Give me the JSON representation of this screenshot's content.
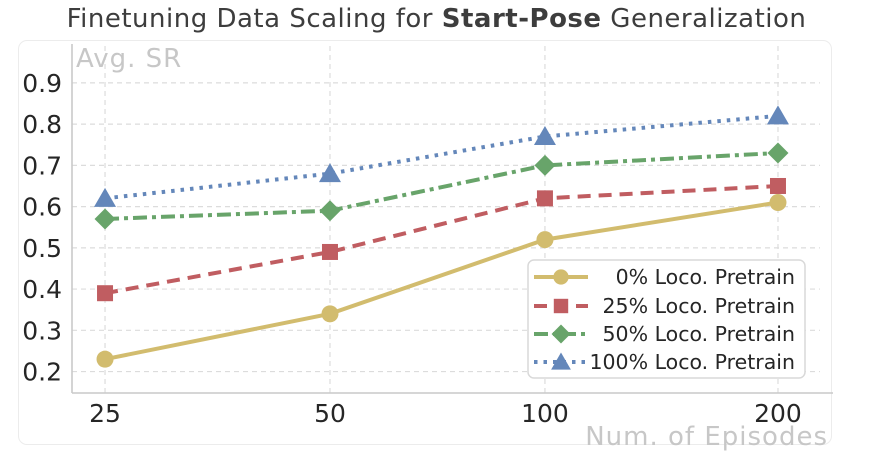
{
  "title": {
    "prefix": "Finetuning Data Scaling for ",
    "bold": "Start-Pose",
    "suffix": " Generalization"
  },
  "chart_data": {
    "type": "line",
    "x": [
      25,
      50,
      100,
      200
    ],
    "x_tick_labels": [
      "25",
      "50",
      "100",
      "200"
    ],
    "xlabel": "Num. of Episodes",
    "ylabel": "Avg. SR",
    "ylim": [
      0.148,
      1.004
    ],
    "yticks": [
      0.2,
      0.3,
      0.4,
      0.5,
      0.6,
      0.7,
      0.8,
      0.9
    ],
    "ytick_labels": [
      "0.2",
      "0.3",
      "0.4",
      "0.5",
      "0.6",
      "0.7",
      "0.8",
      "0.9"
    ],
    "grid": true,
    "legend_position": "lower right",
    "series": [
      {
        "name": "0% Loco. Pretrain",
        "values": [
          0.23,
          0.34,
          0.52,
          0.61
        ],
        "color": "#d2bc6e",
        "marker": "circle",
        "line_style": "solid"
      },
      {
        "name": "25% Loco. Pretrain",
        "values": [
          0.39,
          0.49,
          0.62,
          0.65
        ],
        "color": "#c05d61",
        "marker": "square",
        "line_style": "dashed"
      },
      {
        "name": "50% Loco. Pretrain",
        "values": [
          0.57,
          0.59,
          0.7,
          0.73
        ],
        "color": "#68a46a",
        "marker": "diamond",
        "line_style": "dashdot"
      },
      {
        "name": "100% Loco. Pretrain",
        "values": [
          0.62,
          0.68,
          0.77,
          0.82
        ],
        "color": "#6487ba",
        "marker": "triangle",
        "line_style": "dotted"
      }
    ]
  },
  "colors": {
    "title_text": "#3d3d3d",
    "tick_text": "#262626",
    "muted_label": "#c7c7c7",
    "grid_line": "#dcdcdc",
    "axis_spine": "#c9c9c9",
    "card_border": "#ececec",
    "legend_border": "#d9d9d9",
    "legend_bg": "#ffffff"
  }
}
